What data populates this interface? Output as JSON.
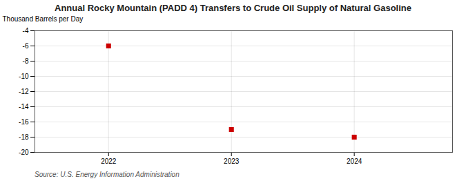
{
  "chart_data": {
    "type": "scatter",
    "title": "Annual Rocky Mountain (PADD 4) Transfers to Crude Oil Supply of Natural Gasoline",
    "ylabel": "Thousand Barrels per Day",
    "source": "Source: U.S. Energy Information Administration",
    "x": [
      2022,
      2023,
      2024
    ],
    "values": [
      -6,
      -17,
      -18
    ],
    "color": "#cc0000",
    "marker": "square",
    "xlim": [
      2021.4,
      2024.8
    ],
    "ylim": [
      -20,
      -4
    ],
    "xticks": [
      2022,
      2023,
      2024
    ],
    "yticks": [
      -4,
      -6,
      -8,
      -10,
      -12,
      -14,
      -16,
      -18,
      -20
    ],
    "grid": true
  }
}
